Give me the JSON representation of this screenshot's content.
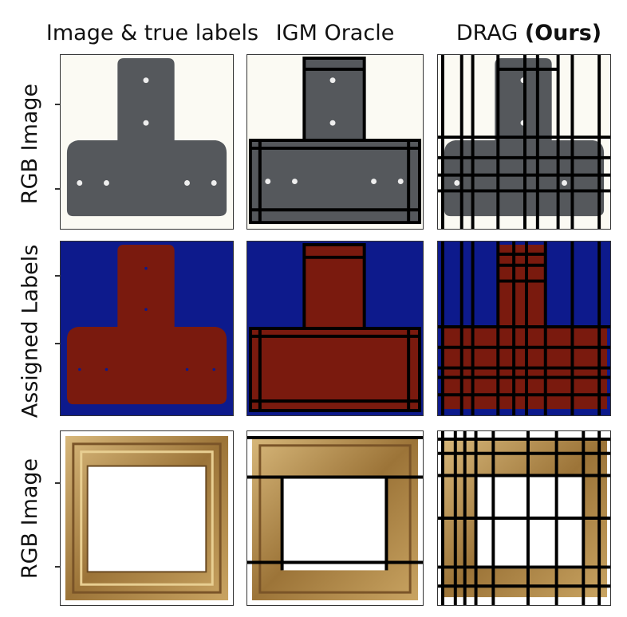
{
  "columns": {
    "col1": "Image & true labels",
    "col2": "IGM Oracle",
    "col3_prefix": "DRAG",
    "col3_bold": "(Ours)"
  },
  "rows": {
    "row1": "RGB Image",
    "row2": "Assigned Labels",
    "row3": "RGB Image"
  },
  "colors": {
    "background_label": "#0d1a8c",
    "object_label": "#7a1a0e",
    "plate_gray": "#55585c",
    "frame_gold": "#b48a4a",
    "grid_line": "#000000"
  }
}
